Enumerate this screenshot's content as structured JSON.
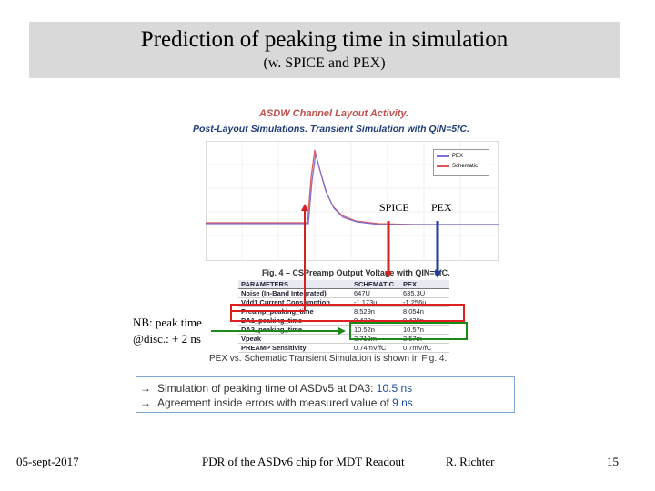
{
  "slide": {
    "title": "Prediction of peaking time in simulation",
    "subtitle": "(w. SPICE and PEX)"
  },
  "figure": {
    "heading": "ASDW Channel Layout Activity.",
    "subheading": "Post-Layout Simulations. Transient Simulation with QIN=5fC.",
    "legend": [
      {
        "name": "PEX",
        "color": "#7b6fd8"
      },
      {
        "name": "Schematic",
        "color": "#e05555"
      }
    ],
    "annotations": {
      "spice": "SPICE",
      "pex": "PEX"
    },
    "caption": "Fig. 4 – CSPreamp Output Voltage with QIN=5fC.",
    "table": {
      "headers": [
        "PARAMETERS",
        "SCHEMATIC",
        "PEX"
      ],
      "rows": [
        [
          "Noise (In-Band Integrated)",
          "647U",
          "635.3U"
        ],
        [
          "Vdd1 Current Consumption",
          "-1.173u",
          "-1.256u"
        ],
        [
          "Preamp_peaking_time",
          "8.529n",
          "8.054n"
        ],
        [
          "DA1_peaking_time",
          "9.420n",
          "9.438n"
        ],
        [
          "DA3_peaking_time",
          "10.52n",
          "10.57n"
        ],
        [
          "Vpeak",
          "3.713m",
          "3.57m"
        ],
        [
          "PREAMP Sensitivity",
          "0.74mV/fC",
          "0.7mV/fC"
        ]
      ]
    },
    "note": "PEX vs. Schematic Transient Simulation is shown in Fig. 4."
  },
  "nb_note": {
    "line1": "NB: peak time",
    "line2": "@disc.: + 2 ns"
  },
  "results": [
    {
      "prefix": "Simulation of peaking time of ASDv5 at DA3: ",
      "value": "10.5 ns"
    },
    {
      "prefix": "Agreement inside errors with measured value of  ",
      "value": "9 ns"
    }
  ],
  "footer": {
    "date": "05-sept-2017",
    "center": "PDR of the ASDv6 chip for MDT Readout",
    "author": "R. Richter",
    "page": "15"
  }
}
